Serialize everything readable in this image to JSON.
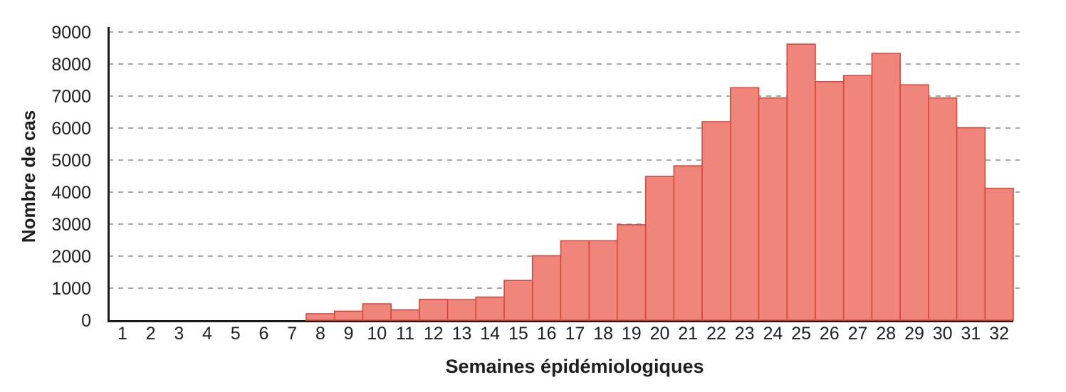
{
  "chart_data": {
    "type": "bar",
    "title": "",
    "xlabel": "Semaines épidémiologiques",
    "ylabel": "Nombre de cas",
    "categories": [
      "1",
      "2",
      "3",
      "4",
      "5",
      "6",
      "7",
      "8",
      "9",
      "10",
      "11",
      "12",
      "13",
      "14",
      "15",
      "16",
      "17",
      "18",
      "19",
      "20",
      "21",
      "22",
      "23",
      "24",
      "25",
      "26",
      "27",
      "28",
      "29",
      "30",
      "31",
      "32"
    ],
    "values": [
      0,
      0,
      0,
      0,
      0,
      0,
      0,
      200,
      280,
      510,
      320,
      650,
      640,
      720,
      1240,
      2010,
      2480,
      2480,
      2980,
      4490,
      4820,
      6200,
      7260,
      6940,
      8620,
      7450,
      7640,
      8330,
      7350,
      6940,
      6010,
      4120
    ],
    "ylim": [
      0,
      9000
    ],
    "yticks": [
      0,
      1000,
      2000,
      3000,
      4000,
      5000,
      6000,
      7000,
      8000,
      9000
    ],
    "grid": "horizontal-dashed",
    "legend": null,
    "bars_touching": true
  },
  "colors": {
    "bar_fill": "#F0867B",
    "bar_border": "#D84839",
    "gridline": "#A8A8A8",
    "axis": "#1A1A1A",
    "text": "#1F1F1F"
  }
}
